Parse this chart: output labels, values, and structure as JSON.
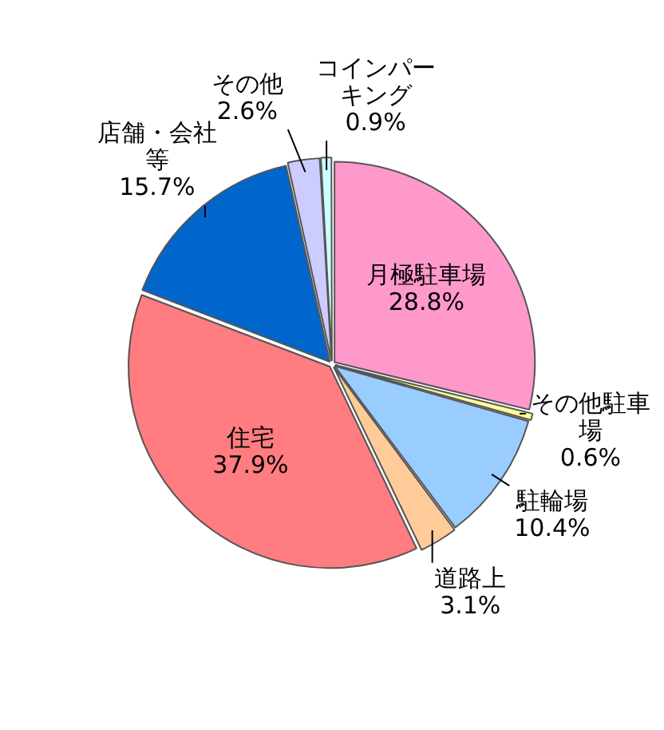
{
  "chart_data": {
    "type": "pie",
    "categories": [
      "月極駐車場",
      "その他駐車場",
      "駐輪場",
      "道路上",
      "住宅",
      "店舗・会社等",
      "その他",
      "コインパーキング"
    ],
    "values": [
      28.8,
      0.6,
      10.4,
      3.1,
      37.9,
      15.7,
      2.6,
      0.9
    ],
    "value_labels": [
      "28.8%",
      "0.6%",
      "10.4%",
      "3.1%",
      "37.9%",
      "15.7%",
      "2.6%",
      "0.9%"
    ],
    "colors": [
      "#ff99cc",
      "#ffff99",
      "#99ccff",
      "#ffcc99",
      "#ff7c80",
      "#0066cc",
      "#ccccff",
      "#ccffff"
    ],
    "legend": false
  }
}
